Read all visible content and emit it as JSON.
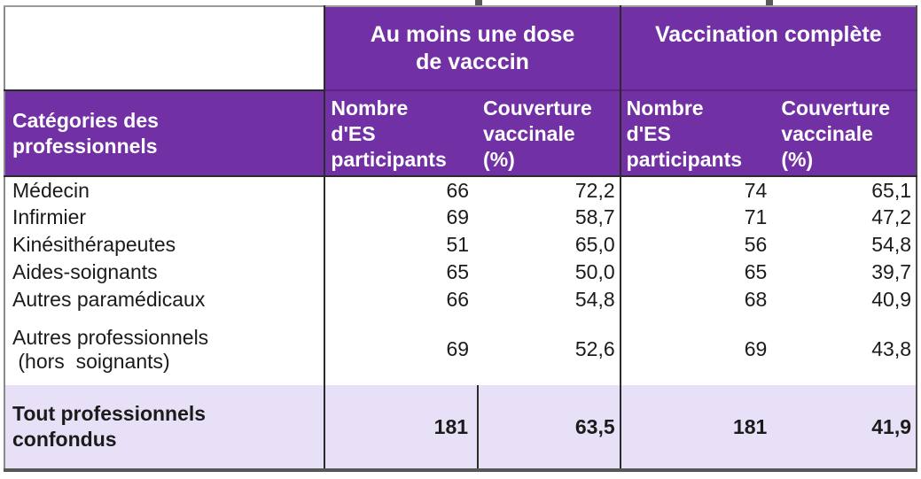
{
  "colors": {
    "header_purple": "#7131A4",
    "footer_lavender": "#E7E0F6",
    "divider_black": "#2b2b2b",
    "outer_border_gray": "#8a8a8a",
    "bottom_border_gray": "#575757"
  },
  "header": {
    "corner": "",
    "categories_label": "Catégories des\nprofessionnels",
    "groups": [
      {
        "title": "Au moins une dose\nde vacccin",
        "count_header": "Nombre\nd'ES\nparticipants",
        "coverage_header": "Couverture\nvaccinale\n(%)"
      },
      {
        "title": "Vaccination complète",
        "count_header": "Nombre\nd'ES\nparticipants",
        "coverage_header": "Couverture\nvaccinale\n(%)"
      }
    ]
  },
  "rows": [
    {
      "label": "Médecin",
      "dose1_count": "66",
      "dose1_coverage": "72,2",
      "full_count": "74",
      "full_coverage": "65,1"
    },
    {
      "label": "Infirmier",
      "dose1_count": "69",
      "dose1_coverage": "58,7",
      "full_count": "71",
      "full_coverage": "47,2"
    },
    {
      "label": "Kinésithérapeutes",
      "dose1_count": "51",
      "dose1_coverage": "65,0",
      "full_count": "56",
      "full_coverage": "54,8"
    },
    {
      "label": "Aides-soignants",
      "dose1_count": "65",
      "dose1_coverage": "50,0",
      "full_count": "65",
      "full_coverage": "39,7"
    },
    {
      "label": "Autres paramédicaux",
      "dose1_count": "66",
      "dose1_coverage": "54,8",
      "full_count": "68",
      "full_coverage": "40,9"
    },
    {
      "label": "Autres professionnels\n (hors  soignants)",
      "dose1_count": "69",
      "dose1_coverage": "52,6",
      "full_count": "69",
      "full_coverage": "43,8"
    }
  ],
  "footer": {
    "label": "Tout professionnels\nconfondus",
    "dose1_count": "181",
    "dose1_coverage": "63,5",
    "full_count": "181",
    "full_coverage": "41,9"
  }
}
